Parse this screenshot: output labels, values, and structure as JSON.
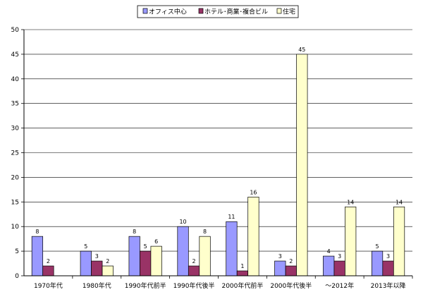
{
  "chart_data": {
    "type": "bar",
    "title": "",
    "xlabel": "",
    "ylabel": "",
    "ylim": [
      0,
      50
    ],
    "yticks": [
      0,
      5,
      10,
      15,
      20,
      25,
      30,
      35,
      40,
      45,
      50
    ],
    "grid": true,
    "legend_position": "top",
    "categories": [
      "1970年代",
      "1980年代",
      "1990年代前半",
      "1990年代後半",
      "2000年代前半",
      "2000年代後半",
      "～2012年",
      "2013年以降"
    ],
    "series": [
      {
        "name": "オフィス中心",
        "color": "#9999ff",
        "values": [
          8,
          5,
          8,
          10,
          11,
          3,
          4,
          5
        ]
      },
      {
        "name": "ホテル･商業･複合ビル",
        "color": "#993366",
        "values": [
          2,
          3,
          5,
          2,
          1,
          2,
          3,
          3
        ]
      },
      {
        "name": "住宅",
        "color": "#ffffcc",
        "values": [
          null,
          2,
          6,
          8,
          16,
          45,
          14,
          14
        ]
      }
    ]
  }
}
